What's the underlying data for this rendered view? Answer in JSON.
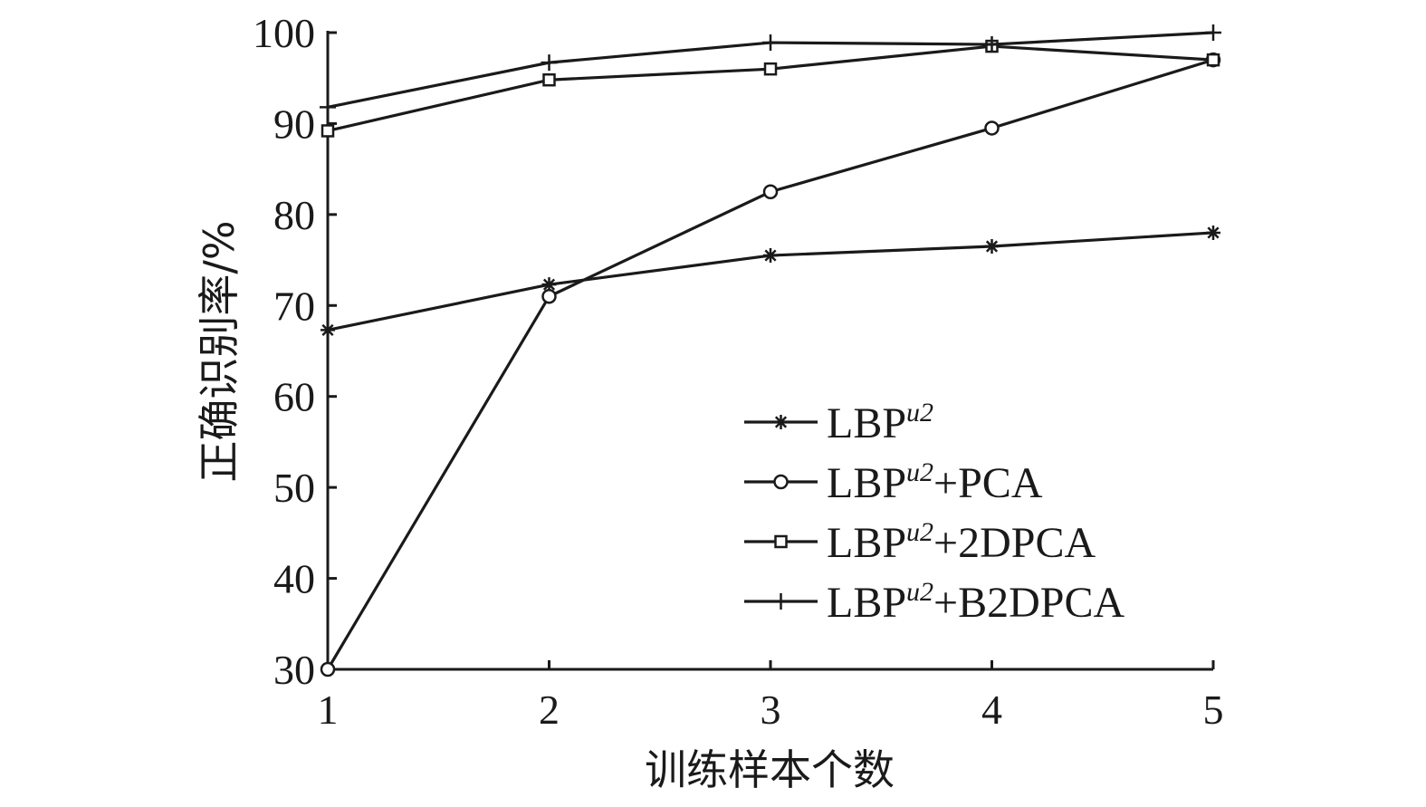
{
  "chart_data": {
    "type": "line",
    "xlabel": "训练样本个数",
    "ylabel": "正确识别率/%",
    "x": [
      1,
      2,
      3,
      4,
      5
    ],
    "xlim": [
      1,
      5
    ],
    "ylim": [
      30,
      100
    ],
    "xticks": [
      "1",
      "2",
      "3",
      "4",
      "5"
    ],
    "yticks": [
      "30",
      "40",
      "50",
      "60",
      "70",
      "80",
      "90",
      "100"
    ],
    "grid": false,
    "legend_position": "bottom-right",
    "series": [
      {
        "name_base": "LBP",
        "name_sup": "u2",
        "name_suffix": "",
        "marker": "asterisk",
        "values": [
          67.3,
          72.3,
          75.5,
          76.5,
          78.0
        ]
      },
      {
        "name_base": "LBP",
        "name_sup": "u2",
        "name_suffix": "+PCA",
        "marker": "circle",
        "values": [
          30.0,
          71.0,
          82.5,
          89.5,
          97.0
        ]
      },
      {
        "name_base": "LBP",
        "name_sup": "u2",
        "name_suffix": "+2DPCA",
        "marker": "square",
        "values": [
          89.2,
          94.8,
          96.0,
          98.5,
          97.0
        ]
      },
      {
        "name_base": "LBP",
        "name_sup": "u2",
        "name_suffix": "+B2DPCA",
        "marker": "plus",
        "values": [
          91.8,
          96.7,
          98.9,
          98.7,
          100.0
        ]
      }
    ]
  }
}
